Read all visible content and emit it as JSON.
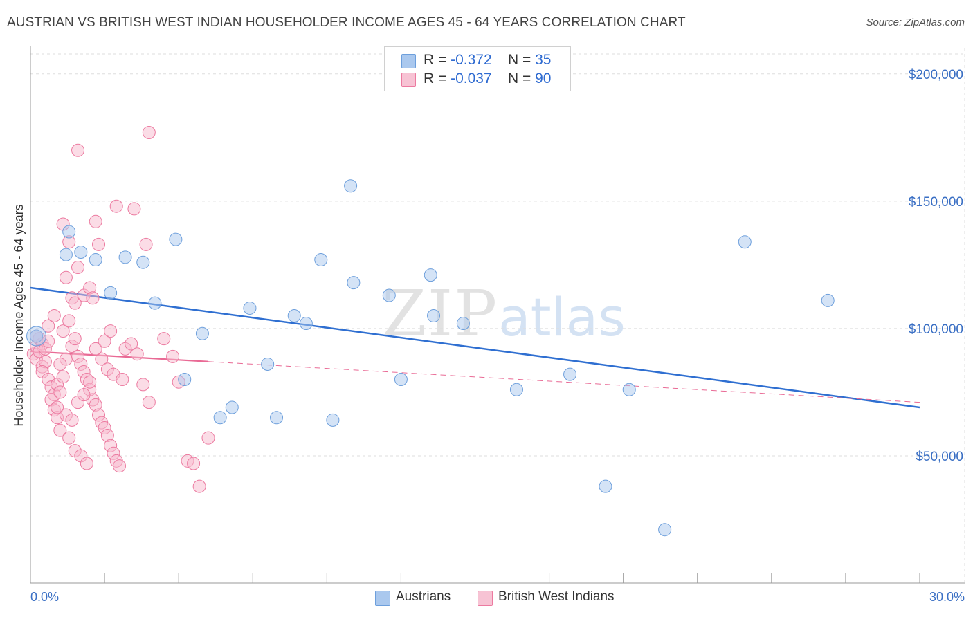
{
  "header": {
    "title": "AUSTRIAN VS BRITISH WEST INDIAN HOUSEHOLDER INCOME AGES 45 - 64 YEARS CORRELATION CHART",
    "source": "Source: ZipAtlas.com"
  },
  "watermark": {
    "zip": "ZIP",
    "atlas": "atlas"
  },
  "legend_top": {
    "rows": [
      {
        "r_label": "R =",
        "r_value": "-0.372",
        "n_label": "N =",
        "n_value": "35"
      },
      {
        "r_label": "R =",
        "r_value": "-0.037",
        "n_label": "N =",
        "n_value": "90"
      }
    ]
  },
  "legend_bottom": {
    "items": [
      "Austrians",
      "British West Indians"
    ]
  },
  "colors": {
    "blue_fill": "#aac8ee",
    "blue_stroke": "#6d9fdc",
    "blue_line": "#2f6fd1",
    "pink_fill": "#f7b9ce",
    "pink_stroke": "#ec7aa0",
    "pink_line": "#e96a95",
    "grid": "#dddddd",
    "tick_text": "#3a6fc4"
  },
  "chart_data": {
    "type": "scatter",
    "title": "AUSTRIAN VS BRITISH WEST INDIAN HOUSEHOLDER INCOME AGES 45 - 64 YEARS CORRELATION CHART",
    "xlabel": "",
    "ylabel": "Householder Income Ages 45 - 64 years",
    "xlim": [
      0,
      30
    ],
    "ylim": [
      0,
      210000
    ],
    "x_tick_labels": [
      "0.0%",
      "30.0%"
    ],
    "y_ticks": [
      50000,
      100000,
      150000,
      200000
    ],
    "y_tick_labels": [
      "$50,000",
      "$100,000",
      "$150,000",
      "$200,000"
    ],
    "series": [
      {
        "name": "Austrians",
        "color": "blue",
        "R": -0.372,
        "N": 35,
        "trend": {
          "x": [
            0,
            30
          ],
          "y": [
            116000,
            69000
          ]
        },
        "points": [
          [
            0.2,
            97000
          ],
          [
            1.2,
            129000
          ],
          [
            1.3,
            138000
          ],
          [
            1.7,
            130000
          ],
          [
            2.2,
            127000
          ],
          [
            2.7,
            114000
          ],
          [
            3.2,
            128000
          ],
          [
            3.8,
            126000
          ],
          [
            4.2,
            110000
          ],
          [
            4.9,
            135000
          ],
          [
            5.2,
            80000
          ],
          [
            5.8,
            98000
          ],
          [
            6.4,
            65000
          ],
          [
            6.8,
            69000
          ],
          [
            7.4,
            108000
          ],
          [
            8.0,
            86000
          ],
          [
            8.3,
            65000
          ],
          [
            8.9,
            105000
          ],
          [
            9.3,
            102000
          ],
          [
            9.8,
            127000
          ],
          [
            10.2,
            64000
          ],
          [
            10.8,
            156000
          ],
          [
            10.9,
            118000
          ],
          [
            12.1,
            113000
          ],
          [
            12.5,
            80000
          ],
          [
            13.5,
            121000
          ],
          [
            13.6,
            105000
          ],
          [
            14.6,
            102000
          ],
          [
            16.4,
            76000
          ],
          [
            18.2,
            82000
          ],
          [
            19.4,
            38000
          ],
          [
            20.2,
            76000
          ],
          [
            21.4,
            21000
          ],
          [
            24.1,
            134000
          ],
          [
            26.9,
            111000
          ]
        ]
      },
      {
        "name": "British West Indians",
        "color": "pink",
        "R": -0.037,
        "N": 90,
        "trend": {
          "x": [
            0,
            6
          ],
          "y": [
            91000,
            87000
          ]
        },
        "trend_extended": {
          "x": [
            6,
            30
          ],
          "y": [
            87000,
            71000
          ]
        },
        "points": [
          [
            0.1,
            90000
          ],
          [
            0.2,
            93000
          ],
          [
            0.3,
            96000
          ],
          [
            0.2,
            88000
          ],
          [
            0.4,
            94000
          ],
          [
            0.3,
            91000
          ],
          [
            0.5,
            92000
          ],
          [
            0.6,
            95000
          ],
          [
            0.2,
            97000
          ],
          [
            0.4,
            85000
          ],
          [
            0.5,
            87000
          ],
          [
            0.4,
            83000
          ],
          [
            0.6,
            80000
          ],
          [
            0.7,
            77000
          ],
          [
            0.8,
            74000
          ],
          [
            0.9,
            78000
          ],
          [
            0.7,
            72000
          ],
          [
            1.0,
            75000
          ],
          [
            0.8,
            68000
          ],
          [
            0.9,
            65000
          ],
          [
            1.1,
            81000
          ],
          [
            1.2,
            88000
          ],
          [
            1.0,
            86000
          ],
          [
            1.1,
            99000
          ],
          [
            1.3,
            103000
          ],
          [
            1.4,
            112000
          ],
          [
            1.5,
            110000
          ],
          [
            1.2,
            120000
          ],
          [
            1.6,
            124000
          ],
          [
            1.8,
            113000
          ],
          [
            2.0,
            116000
          ],
          [
            2.1,
            112000
          ],
          [
            1.3,
            134000
          ],
          [
            1.1,
            141000
          ],
          [
            1.6,
            170000
          ],
          [
            2.3,
            133000
          ],
          [
            2.2,
            142000
          ],
          [
            2.9,
            148000
          ],
          [
            3.5,
            147000
          ],
          [
            3.9,
            133000
          ],
          [
            4.0,
            177000
          ],
          [
            1.4,
            93000
          ],
          [
            1.5,
            96000
          ],
          [
            1.6,
            89000
          ],
          [
            1.7,
            86000
          ],
          [
            1.8,
            83000
          ],
          [
            1.9,
            80000
          ],
          [
            2.0,
            76000
          ],
          [
            2.1,
            72000
          ],
          [
            2.2,
            70000
          ],
          [
            2.3,
            66000
          ],
          [
            2.4,
            63000
          ],
          [
            2.5,
            61000
          ],
          [
            2.6,
            58000
          ],
          [
            2.7,
            54000
          ],
          [
            2.8,
            51000
          ],
          [
            2.9,
            48000
          ],
          [
            3.0,
            46000
          ],
          [
            3.2,
            92000
          ],
          [
            3.4,
            94000
          ],
          [
            3.6,
            90000
          ],
          [
            3.8,
            78000
          ],
          [
            4.0,
            71000
          ],
          [
            4.5,
            96000
          ],
          [
            4.8,
            89000
          ],
          [
            5.0,
            79000
          ],
          [
            5.3,
            48000
          ],
          [
            5.5,
            47000
          ],
          [
            5.7,
            38000
          ],
          [
            6.0,
            57000
          ],
          [
            1.0,
            60000
          ],
          [
            1.3,
            57000
          ],
          [
            1.5,
            52000
          ],
          [
            1.7,
            50000
          ],
          [
            1.9,
            47000
          ],
          [
            2.4,
            88000
          ],
          [
            2.6,
            84000
          ],
          [
            2.8,
            82000
          ],
          [
            3.1,
            80000
          ],
          [
            0.9,
            69000
          ],
          [
            1.2,
            66000
          ],
          [
            1.4,
            64000
          ],
          [
            1.6,
            71000
          ],
          [
            1.8,
            74000
          ],
          [
            2.0,
            79000
          ],
          [
            2.2,
            92000
          ],
          [
            2.5,
            95000
          ],
          [
            2.7,
            99000
          ],
          [
            0.6,
            101000
          ],
          [
            0.8,
            105000
          ]
        ]
      }
    ]
  }
}
